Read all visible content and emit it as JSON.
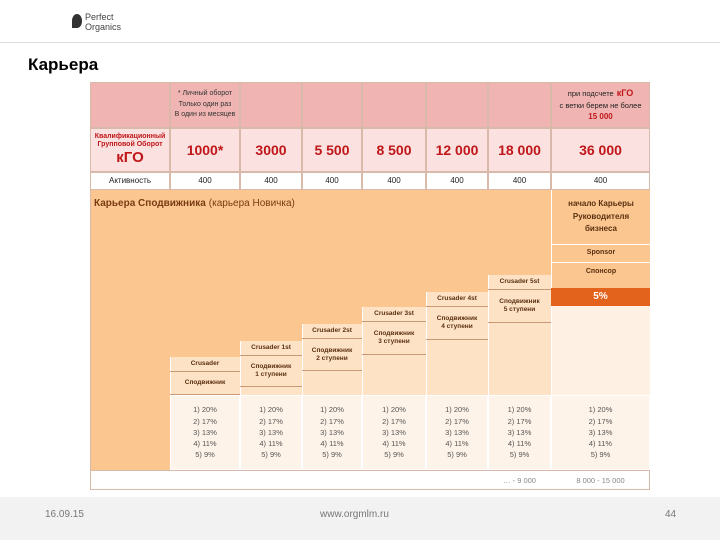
{
  "header": {
    "logo": [
      "Perfect",
      "Organics"
    ],
    "title": "Карьера"
  },
  "table": {
    "note": [
      "* Личный оборот",
      "Только один раз",
      "В один из месяцев"
    ],
    "cap": {
      "pre": "при подсчете",
      "em": "кГО",
      "line2": "с ветки берем не более",
      "amount": "15 000"
    },
    "qual_label": "Квалификационный Групповой Оборот",
    "qual_abbr": "кГО",
    "volumes": [
      "1000*",
      "3000",
      "5 500",
      "8 500",
      "12 000",
      "18 000",
      "36 000"
    ],
    "activity_label": "Активность",
    "activity": [
      "400",
      "400",
      "400",
      "400",
      "400",
      "400",
      "400"
    ],
    "career_title": "Карьера Сподвижника",
    "career_sub": "(карьера Новичка)",
    "ranks": [
      {
        "en": "Crusader",
        "ru": "Сподвижник"
      },
      {
        "en": "Crusader 1st",
        "ru": "Сподвижник 1 ступени"
      },
      {
        "en": "Crusader 2st",
        "ru": "Сподвижник 2 ступени"
      },
      {
        "en": "Crusader 3st",
        "ru": "Сподвижник 3 ступени"
      },
      {
        "en": "Crusader 4st",
        "ru": "Сподвижник 4 ступени"
      },
      {
        "en": "Crusader 5st",
        "ru": "Сподвижник 5 ступени"
      }
    ],
    "bonuses": [
      "1) 20%",
      "2) 17%",
      "3) 13%",
      "4) 11%",
      "5) 9%"
    ],
    "leader": {
      "title": "начало Карьеры Руководителя бизнеса",
      "en": "Sponsor",
      "ru": "Спонсор",
      "bonus": "5%"
    },
    "ranges": [
      "… - 9 000",
      "8 000 - 15 000"
    ]
  },
  "footer": {
    "date": "16.09.15",
    "url": "www.orgmlm.ru",
    "page": "44"
  }
}
